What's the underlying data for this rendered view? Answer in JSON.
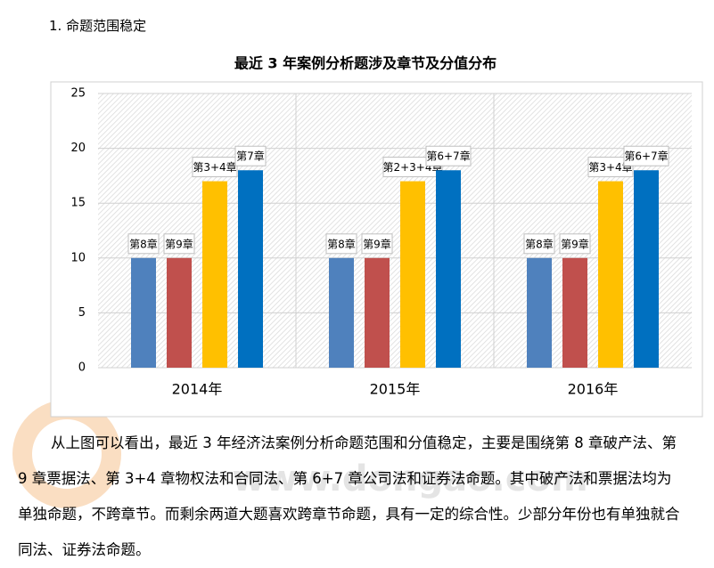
{
  "heading": "1. 命题范围稳定",
  "chart_data": {
    "type": "bar",
    "title": "最近 3 年案例分析题涉及章节及分值分布",
    "categories": [
      "2014年",
      "2015年",
      "2016年"
    ],
    "series": [
      {
        "color": "#4f81bd",
        "values": [
          10,
          10,
          10
        ],
        "labels": [
          "第8章",
          "第8章",
          "第8章"
        ]
      },
      {
        "color": "#c0504d",
        "values": [
          10,
          10,
          10
        ],
        "labels": [
          "第9章",
          "第9章",
          "第9章"
        ]
      },
      {
        "color": "#ffc000",
        "values": [
          17,
          17,
          17
        ],
        "labels": [
          "第3+4章",
          "第2+3+4章",
          "第3+4章"
        ]
      },
      {
        "color": "#0070c0",
        "values": [
          18,
          18,
          18
        ],
        "labels": [
          "第7章",
          "第6+7章",
          "第6+7章"
        ]
      }
    ],
    "ylim": [
      0,
      25
    ],
    "yticks": [
      0,
      5,
      10,
      15,
      20,
      25
    ],
    "grid": true
  },
  "paragraph": "从上图可以看出，最近 3 年经济法案例分析命题范围和分值稳定，主要是围绕第 8 章破产法、第 9 章票据法、第 3+4 章物权法和合同法、第 6+7 章公司法和证券法命题。其中破产法和票据法均为单独命题，不跨章节。而剩余两道大题喜欢跨章节命题，具有一定的综合性。少部分年份也有单独就合同法、证券法命题。",
  "watermark": "www.dongao.com"
}
